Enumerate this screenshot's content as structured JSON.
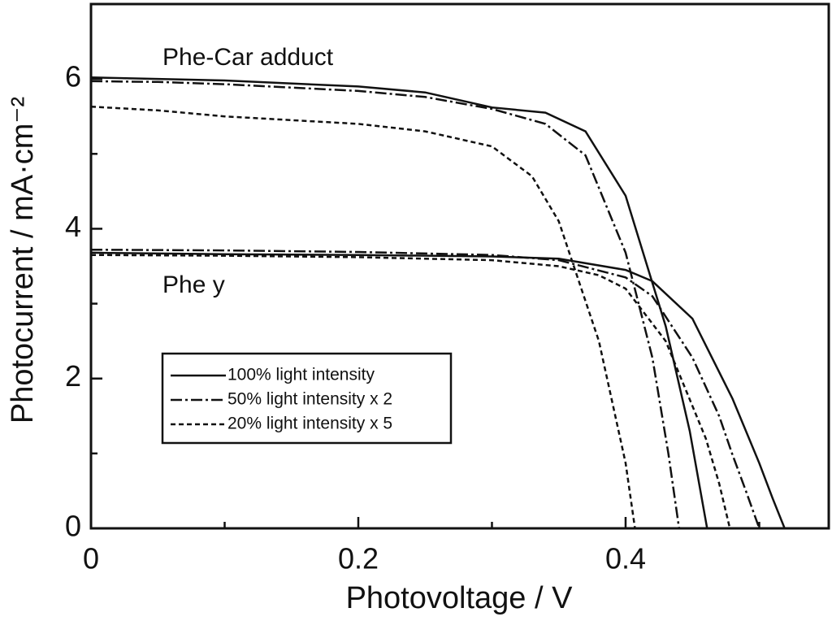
{
  "chart_data": {
    "type": "line",
    "x_label": "Photovoltage / V",
    "y_label": "Photocurrent / mA·cm⁻²",
    "xlim": [
      0,
      0.552
    ],
    "ylim": [
      0,
      7
    ],
    "xticks": [
      0,
      0.2,
      0.4
    ],
    "yticks": [
      0,
      2,
      4,
      6
    ],
    "xminorticks": [
      0.1,
      0.3,
      0.5
    ],
    "yminorticks": [
      1,
      3,
      5,
      7
    ],
    "color": "#111111",
    "legend": [
      "100% light intensity",
      "50% light intensity x 2",
      "20% light intensity x 5"
    ],
    "dashes": [
      "none",
      "14,4,3,4",
      "6,4"
    ],
    "curves": [
      {
        "label": "Phe-Car adduct",
        "series": [
          {
            "x": [
              0,
              0.05,
              0.1,
              0.2,
              0.25,
              0.3,
              0.34,
              0.37,
              0.4,
              0.43,
              0.448,
              0.461
            ],
            "values": [
              6.02,
              6.0,
              5.98,
              5.9,
              5.82,
              5.62,
              5.55,
              5.3,
              4.44,
              2.7,
              1.3,
              0
            ]
          },
          {
            "x": [
              0,
              0.05,
              0.1,
              0.2,
              0.25,
              0.3,
              0.34,
              0.37,
              0.4,
              0.42,
              0.432,
              0.44
            ],
            "values": [
              5.97,
              5.96,
              5.93,
              5.84,
              5.76,
              5.6,
              5.4,
              4.98,
              3.68,
              2.28,
              1.0,
              0
            ]
          },
          {
            "x": [
              0,
              0.05,
              0.1,
              0.15,
              0.2,
              0.25,
              0.3,
              0.33,
              0.35,
              0.38,
              0.4,
              0.407
            ],
            "values": [
              5.63,
              5.58,
              5.5,
              5.45,
              5.4,
              5.3,
              5.1,
              4.7,
              4.1,
              2.5,
              0.87,
              0
            ]
          }
        ]
      },
      {
        "label": "Phe y",
        "series": [
          {
            "x": [
              0,
              0.1,
              0.2,
              0.3,
              0.35,
              0.4,
              0.42,
              0.45,
              0.48,
              0.5,
              0.51,
              0.519
            ],
            "values": [
              3.68,
              3.66,
              3.65,
              3.63,
              3.6,
              3.45,
              3.3,
              2.8,
              1.73,
              0.87,
              0.4,
              0
            ]
          },
          {
            "x": [
              0,
              0.1,
              0.2,
              0.3,
              0.35,
              0.4,
              0.42,
              0.45,
              0.47,
              0.48,
              0.49,
              0.5
            ],
            "values": [
              3.72,
              3.71,
              3.69,
              3.65,
              3.58,
              3.35,
              3.1,
              2.28,
              1.5,
              0.98,
              0.5,
              0
            ]
          },
          {
            "x": [
              0,
              0.1,
              0.2,
              0.3,
              0.35,
              0.38,
              0.4,
              0.43,
              0.46,
              0.47,
              0.478
            ],
            "values": [
              3.65,
              3.64,
              3.62,
              3.58,
              3.5,
              3.38,
              3.2,
              2.5,
              1.2,
              0.6,
              0
            ]
          }
        ]
      }
    ]
  }
}
